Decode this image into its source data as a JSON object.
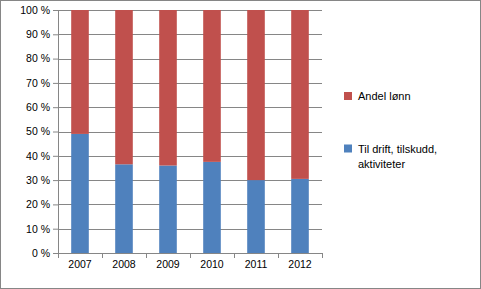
{
  "chart_data": {
    "type": "bar",
    "stacked": true,
    "grid": true,
    "legend": "right",
    "categories": [
      "2007",
      "2008",
      "2009",
      "2010",
      "2011",
      "2012"
    ],
    "series": [
      {
        "name": "Til drift, tilskudd, aktiviteter",
        "color": "#4f81bd",
        "values": [
          49,
          36.5,
          36,
          37.5,
          30,
          30.5
        ]
      },
      {
        "name": "Andel lønn",
        "color": "#c0504d",
        "values": [
          51,
          63.5,
          64,
          62.5,
          70,
          69.5
        ]
      }
    ],
    "ylim": [
      0,
      100
    ],
    "yticks": [
      {
        "value": 0,
        "label": "0 %"
      },
      {
        "value": 10,
        "label": "10 %"
      },
      {
        "value": 20,
        "label": "20 %"
      },
      {
        "value": 30,
        "label": "30 %"
      },
      {
        "value": 40,
        "label": "40 %"
      },
      {
        "value": 50,
        "label": "50 %"
      },
      {
        "value": 60,
        "label": "60 %"
      },
      {
        "value": 70,
        "label": "70 %"
      },
      {
        "value": 80,
        "label": "80 %"
      },
      {
        "value": 90,
        "label": "90 %"
      },
      {
        "value": 100,
        "label": "100 %"
      }
    ]
  }
}
